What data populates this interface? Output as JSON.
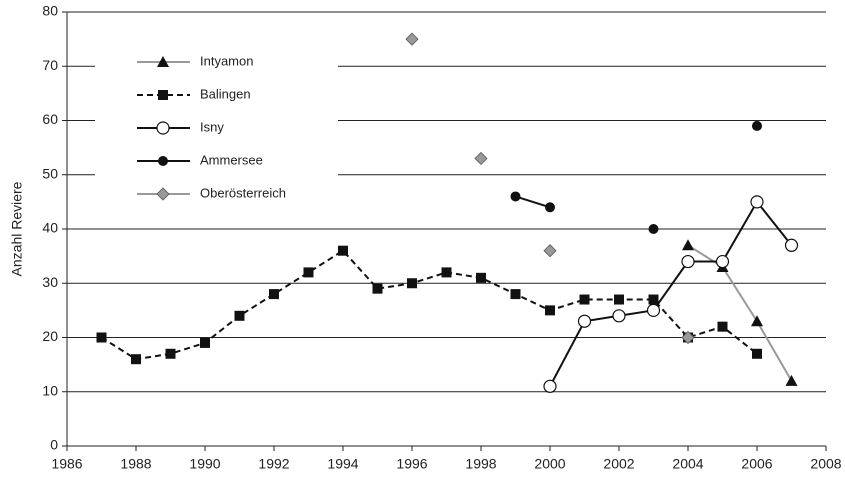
{
  "chart_data": {
    "type": "line",
    "ylabel": "Anzahl Reviere",
    "xlim": [
      1986,
      2008
    ],
    "xticks": [
      1986,
      1988,
      1990,
      1992,
      1994,
      1996,
      1998,
      2000,
      2002,
      2004,
      2006,
      2008
    ],
    "ylim": [
      0,
      80
    ],
    "yticks": [
      0,
      10,
      20,
      30,
      40,
      50,
      60,
      70,
      80
    ],
    "grid": true,
    "legend": "upper left",
    "series": [
      {
        "name": "Intyamon",
        "color": "#999999",
        "marker": "triangle",
        "dashed": false,
        "x": [
          2004,
          2005,
          2006,
          2007
        ],
        "values": [
          37,
          33,
          23,
          12
        ]
      },
      {
        "name": "Balingen",
        "color": "#111111",
        "marker": "square",
        "dashed": true,
        "x": [
          1987,
          1988,
          1989,
          1990,
          1991,
          1992,
          1993,
          1994,
          1995,
          1996,
          1997,
          1998,
          1999,
          2000,
          2001,
          2002,
          2003,
          2004,
          2005,
          2006
        ],
        "values": [
          20,
          16,
          17,
          19,
          24,
          28,
          32,
          36,
          29,
          30,
          32,
          31,
          28,
          25,
          27,
          27,
          27,
          20,
          22,
          17
        ]
      },
      {
        "name": "Isny",
        "color": "#111111",
        "marker": "open-circle",
        "dashed": false,
        "x": [
          2000,
          2001,
          2002,
          2003,
          2004,
          2005,
          2006,
          2007
        ],
        "values": [
          11,
          23,
          24,
          25,
          34,
          34,
          45,
          37
        ]
      },
      {
        "name": "Ammersee",
        "color": "#111111",
        "marker": "circle",
        "dashed": false,
        "x": [
          1999,
          2000,
          2001,
          2002,
          2003,
          2004,
          2005,
          2006
        ],
        "values": [
          46,
          44,
          null,
          null,
          40,
          null,
          null,
          59
        ]
      },
      {
        "name": "Oberösterreich",
        "color": "#999999",
        "marker": "diamond",
        "dashed": false,
        "x": [
          1996,
          1997,
          1998,
          1999,
          2000,
          2001,
          2002,
          2003,
          2004
        ],
        "values": [
          75,
          null,
          53,
          null,
          36,
          null,
          null,
          null,
          20
        ]
      }
    ]
  }
}
